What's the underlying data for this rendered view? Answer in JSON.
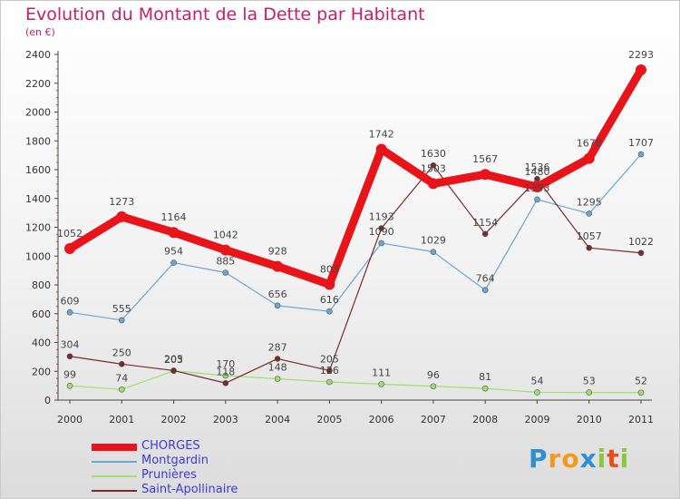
{
  "chart_data": {
    "type": "line",
    "title": "Evolution du Montant de la Dette par Habitant",
    "subtitle": "(en €)",
    "xlabel": "",
    "ylabel": "",
    "categories": [
      "2000",
      "2001",
      "2002",
      "2003",
      "2004",
      "2005",
      "2006",
      "2007",
      "2008",
      "2009",
      "2010",
      "2011"
    ],
    "ylim": [
      0,
      2400
    ],
    "yticks": [
      "0",
      "200",
      "400",
      "600",
      "800",
      "1000",
      "1200",
      "1400",
      "1600",
      "1800",
      "2000",
      "2200",
      "2400"
    ],
    "grid": false,
    "legend_position": "bottom-left",
    "series": [
      {
        "name": "CHORGES",
        "color": "#e8141a",
        "values": [
          1052,
          1273,
          1164,
          1042,
          928,
          803,
          1742,
          1503,
          1567,
          1480,
          1678,
          2293
        ]
      },
      {
        "name": "Montgardin",
        "color": "#6aa7d6",
        "values": [
          609,
          555,
          954,
          885,
          656,
          616,
          1090,
          1029,
          764,
          1393,
          1295,
          1707
        ]
      },
      {
        "name": "Prunières",
        "color": "#9de06a",
        "values": [
          99,
          74,
          203,
          170,
          148,
          126,
          111,
          96,
          81,
          54,
          53,
          52
        ]
      },
      {
        "name": "Saint-Apollinaire",
        "color": "#7a2a2a",
        "values": [
          304,
          250,
          205,
          118,
          287,
          205,
          1193,
          1630,
          1154,
          1536,
          1057,
          1022
        ]
      }
    ]
  },
  "branding": {
    "letters": [
      "P",
      "r",
      "o",
      "x",
      "i",
      "t",
      "i"
    ],
    "colors": [
      "#2f8fd4",
      "#f39a1e",
      "#f39a1e",
      "#2f8fd4",
      "#8cc63f",
      "#e94e1b",
      "#8cc63f"
    ]
  }
}
